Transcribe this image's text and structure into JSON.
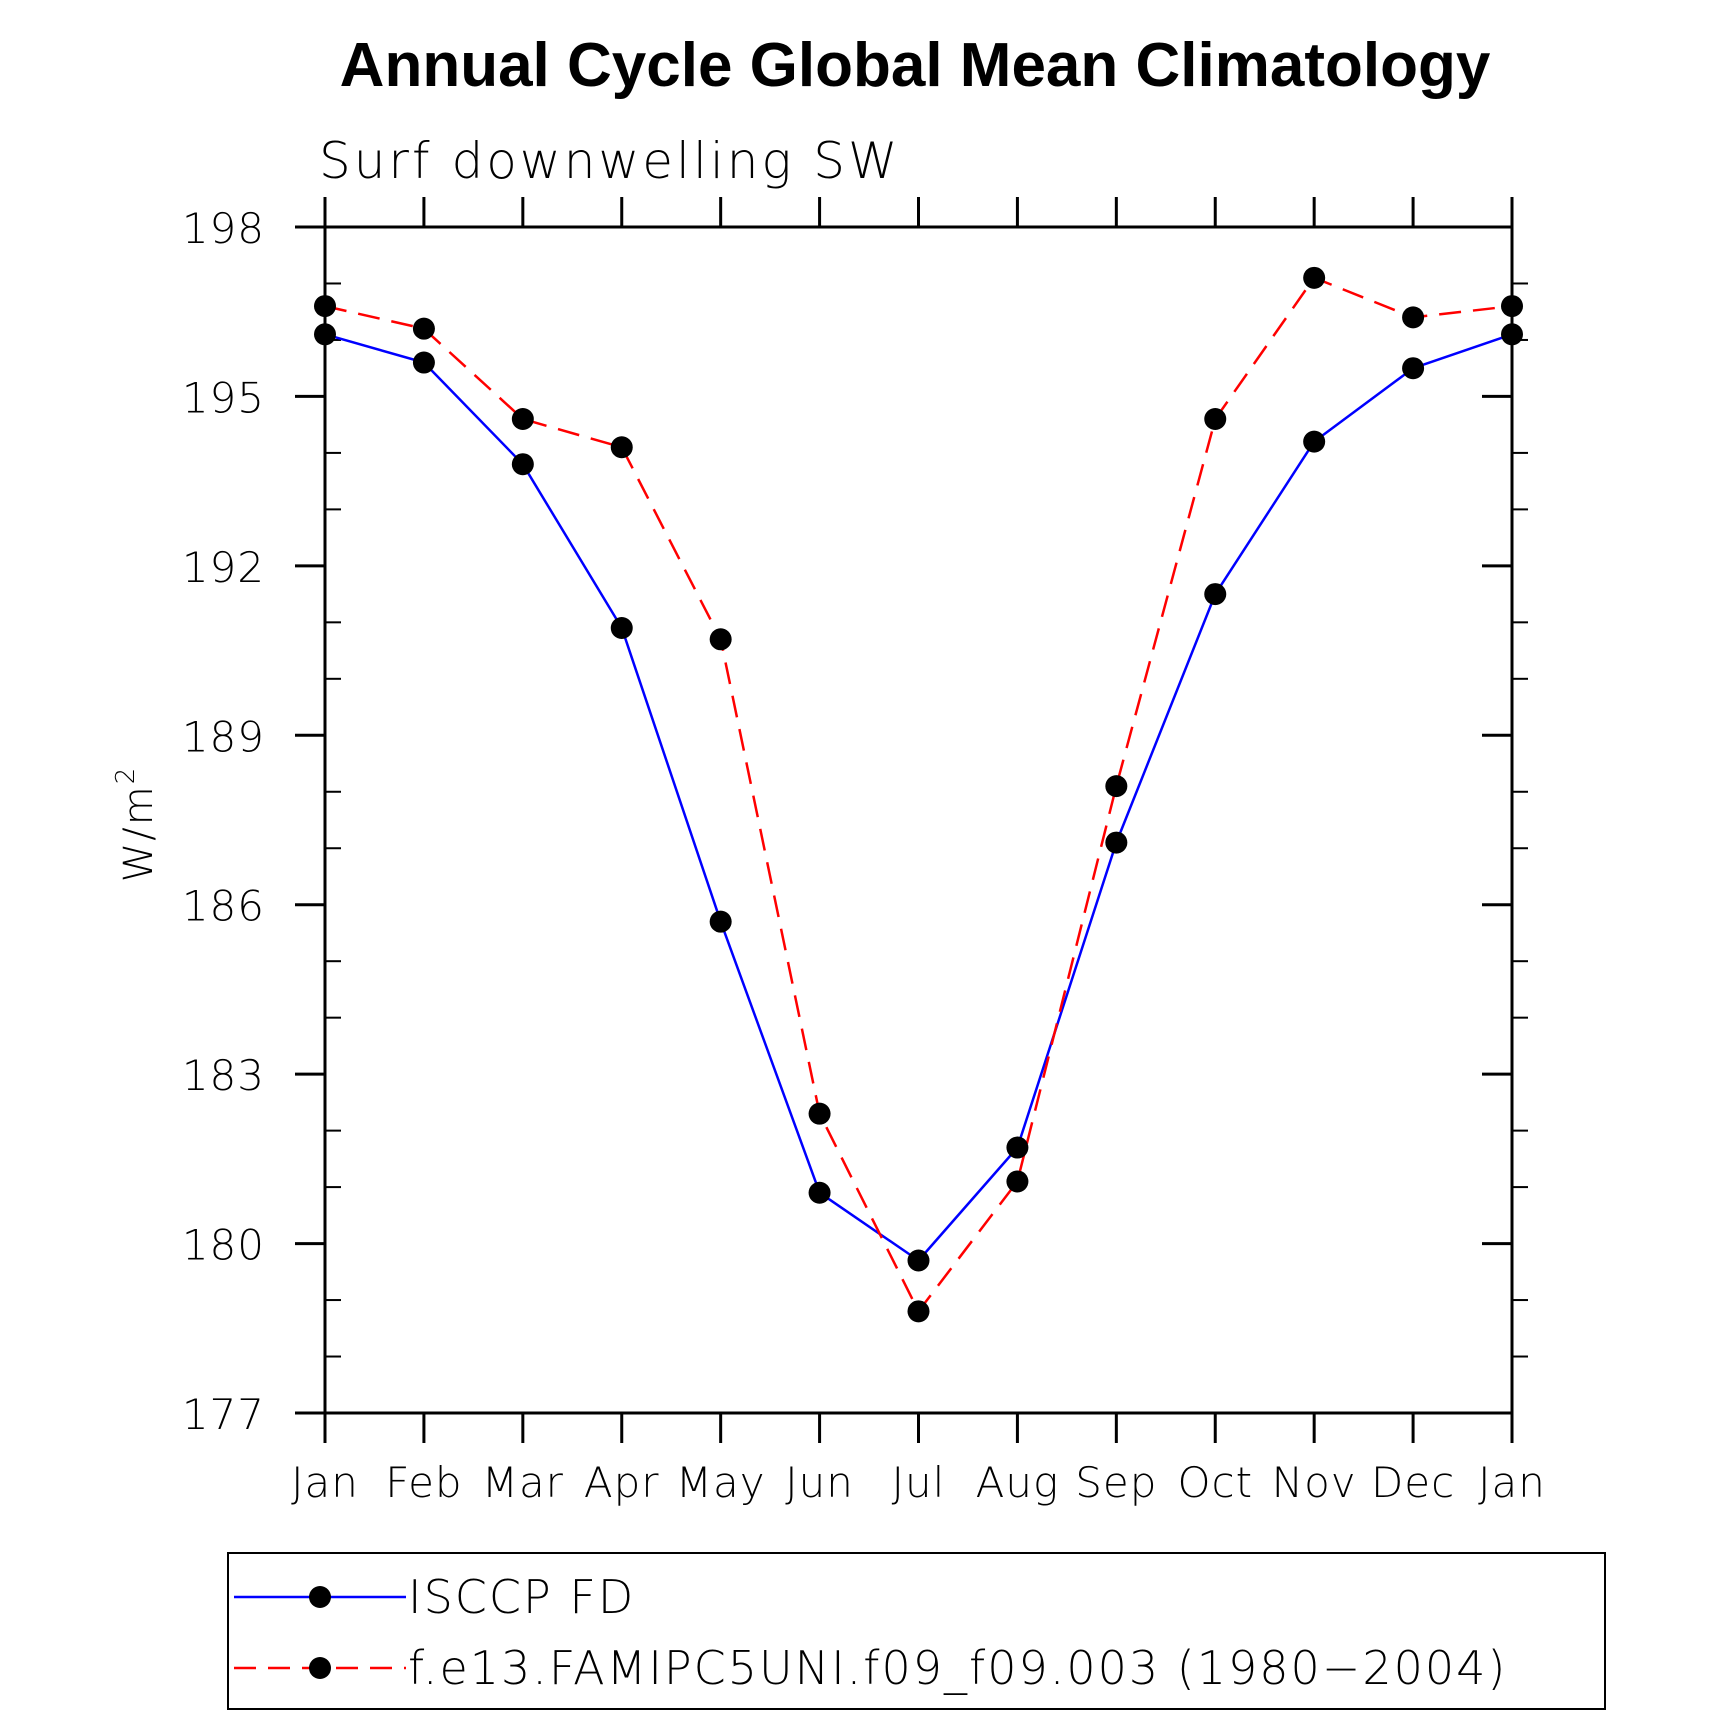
{
  "chart_data": {
    "type": "line",
    "title": "Annual Cycle Global Mean Climatology",
    "subtitle": "Surf downwelling SW",
    "xlabel": "",
    "ylabel": "W/m",
    "ylabel_superscript": "2",
    "categories": [
      "Jan",
      "Feb",
      "Mar",
      "Apr",
      "May",
      "Jun",
      "Jul",
      "Aug",
      "Sep",
      "Oct",
      "Nov",
      "Dec",
      "Jan"
    ],
    "ylim": [
      177,
      198
    ],
    "yticks": [
      177,
      180,
      183,
      186,
      189,
      192,
      195,
      198
    ],
    "ytick_labels": [
      "177",
      "180",
      "183",
      "186",
      "189",
      "192",
      "195",
      "198"
    ],
    "series": [
      {
        "name": "ISCCP FD",
        "color": "#0000ff",
        "style": "solid",
        "marker": "filled-circle",
        "values": [
          196.1,
          195.6,
          193.8,
          190.9,
          185.7,
          180.9,
          179.7,
          181.7,
          187.1,
          191.5,
          194.2,
          195.5,
          196.1
        ]
      },
      {
        "name": "f.e13.FAMIPC5UNI.f09_f09.003 (1980-2004)",
        "color": "#ff0000",
        "style": "dashed",
        "marker": "filled-circle",
        "values": [
          196.6,
          196.2,
          194.6,
          194.1,
          190.7,
          182.3,
          178.8,
          181.1,
          188.1,
          194.6,
          197.1,
          196.4,
          196.6
        ]
      }
    ],
    "legend": {
      "placement": "bottom",
      "entries": [
        "ISCCP FD",
        "f.e13.FAMIPC5UNI.f09_f09.003 (1980−2004)"
      ]
    },
    "grid": false
  },
  "colors": {
    "axis": "#000000",
    "marker": "#000000",
    "background": "#ffffff"
  }
}
